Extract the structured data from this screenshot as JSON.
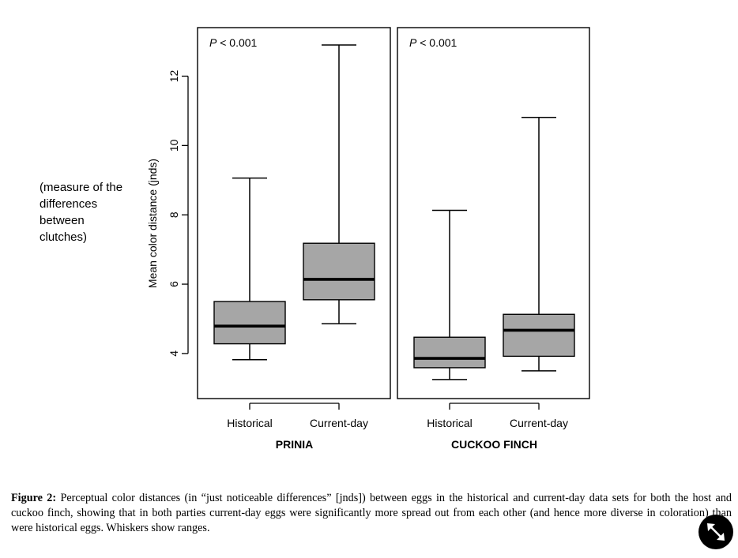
{
  "chart_data": {
    "type": "boxplot",
    "ylabel": "Mean color distance  (jnds)",
    "yticks": [
      4,
      6,
      8,
      10,
      12
    ],
    "ylim": [
      2.7,
      13.4
    ],
    "categories": [
      "Historical",
      "Current-day"
    ],
    "panels": [
      {
        "group": "PRINIA",
        "annotation_italic": "P",
        "annotation": " < 0.001",
        "boxes": [
          {
            "category": "Historical",
            "min": 3.82,
            "q1": 4.28,
            "median": 4.79,
            "q3": 5.5,
            "max": 9.06
          },
          {
            "category": "Current-day",
            "min": 4.86,
            "q1": 5.55,
            "median": 6.14,
            "q3": 7.18,
            "max": 12.9
          }
        ]
      },
      {
        "group": "CUCKOO FINCH",
        "annotation_italic": "P",
        "annotation": " < 0.001",
        "boxes": [
          {
            "category": "Historical",
            "min": 3.25,
            "q1": 3.59,
            "median": 3.86,
            "q3": 4.47,
            "max": 8.13
          },
          {
            "category": "Current-day",
            "min": 3.5,
            "q1": 3.92,
            "median": 4.67,
            "q3": 5.13,
            "max": 10.81
          }
        ]
      }
    ],
    "box_fill": "#a6a6a6"
  },
  "side_note": [
    "(measure of the",
    "differences",
    "between",
    "clutches)"
  ],
  "caption": {
    "label": "Figure 2:",
    "text": " Perceptual color distances (in “just noticeable differences” [jnds]) between eggs in the historical and current-day data sets for both the host and cuckoo finch, showing that in both parties current-day eggs were significantly more spread out from each other (and hence more diverse in coloration) than were historical eggs. Whiskers show ranges."
  },
  "expand_icon": "expand-arrows-icon"
}
